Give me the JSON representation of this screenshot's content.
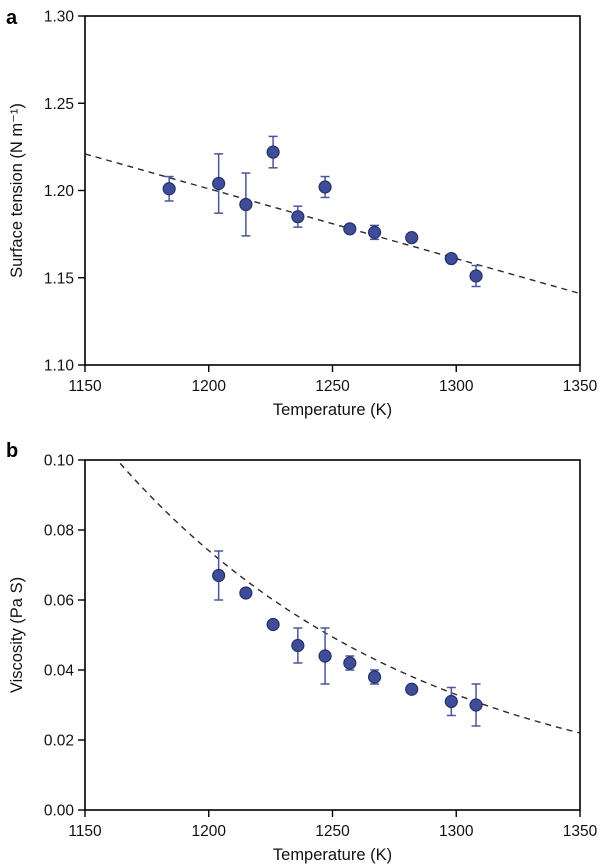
{
  "figure": {
    "background": "#ffffff",
    "marker_fill": "#3d4d99",
    "marker_edge": "#27306a",
    "errorbar_color": "#4a569e",
    "fit_line_color": "#2a2a2a"
  },
  "chart_data": [
    {
      "id": "a",
      "panel_label": "a",
      "type": "scatter",
      "title": "",
      "xlabel": "Temperature (K)",
      "ylabel": "Surface tension (N m⁻¹)",
      "xlim": [
        1150,
        1350
      ],
      "ylim": [
        1.1,
        1.3
      ],
      "grid": false,
      "legend": null,
      "xticks": [
        {
          "value": 1150,
          "label": "1150"
        },
        {
          "value": 1200,
          "label": "1200"
        },
        {
          "value": 1250,
          "label": "1250"
        },
        {
          "value": 1300,
          "label": "1300"
        },
        {
          "value": 1350,
          "label": "1350"
        }
      ],
      "yticks": [
        {
          "value": 1.1,
          "label": "1.10"
        },
        {
          "value": 1.15,
          "label": "1.15"
        },
        {
          "value": 1.2,
          "label": "1.20"
        },
        {
          "value": 1.25,
          "label": "1.25"
        },
        {
          "value": 1.3,
          "label": "1.30"
        }
      ],
      "points": [
        {
          "x": 1184,
          "y": 1.201,
          "err": 0.007
        },
        {
          "x": 1204,
          "y": 1.204,
          "err": 0.017
        },
        {
          "x": 1215,
          "y": 1.192,
          "err": 0.018
        },
        {
          "x": 1226,
          "y": 1.222,
          "err": 0.009
        },
        {
          "x": 1236,
          "y": 1.185,
          "err": 0.006
        },
        {
          "x": 1247,
          "y": 1.202,
          "err": 0.006
        },
        {
          "x": 1257,
          "y": 1.178,
          "err": 0
        },
        {
          "x": 1267,
          "y": 1.176,
          "err": 0.004
        },
        {
          "x": 1282,
          "y": 1.173,
          "err": 0
        },
        {
          "x": 1298,
          "y": 1.161,
          "err": 0
        },
        {
          "x": 1308,
          "y": 1.151,
          "err": 0.006
        }
      ],
      "fit": {
        "type": "linear",
        "points": [
          [
            1150,
            1.221
          ],
          [
            1350,
            1.141
          ]
        ]
      }
    },
    {
      "id": "b",
      "panel_label": "b",
      "type": "scatter",
      "title": "",
      "xlabel": "Temperature (K)",
      "ylabel": "Viscosity (Pa S)",
      "xlim": [
        1150,
        1350
      ],
      "ylim": [
        0.0,
        0.1
      ],
      "grid": false,
      "legend": null,
      "xticks": [
        {
          "value": 1150,
          "label": "1150"
        },
        {
          "value": 1200,
          "label": "1200"
        },
        {
          "value": 1250,
          "label": "1250"
        },
        {
          "value": 1300,
          "label": "1300"
        },
        {
          "value": 1350,
          "label": "1350"
        }
      ],
      "yticks": [
        {
          "value": 0.0,
          "label": "0.00"
        },
        {
          "value": 0.02,
          "label": "0.02"
        },
        {
          "value": 0.04,
          "label": "0.04"
        },
        {
          "value": 0.06,
          "label": "0.06"
        },
        {
          "value": 0.08,
          "label": "0.08"
        },
        {
          "value": 0.1,
          "label": "0.10"
        }
      ],
      "points": [
        {
          "x": 1204,
          "y": 0.067,
          "err": 0.007
        },
        {
          "x": 1215,
          "y": 0.062,
          "err": 0
        },
        {
          "x": 1226,
          "y": 0.053,
          "err": 0
        },
        {
          "x": 1236,
          "y": 0.047,
          "err": 0.005
        },
        {
          "x": 1247,
          "y": 0.044,
          "err": 0.008
        },
        {
          "x": 1257,
          "y": 0.042,
          "err": 0.002
        },
        {
          "x": 1267,
          "y": 0.038,
          "err": 0.002
        },
        {
          "x": 1282,
          "y": 0.0345,
          "err": 0
        },
        {
          "x": 1298,
          "y": 0.031,
          "err": 0.004
        },
        {
          "x": 1308,
          "y": 0.03,
          "err": 0.006
        }
      ],
      "fit": {
        "type": "exp",
        "y0": 0.1,
        "x0": 1163,
        "k": 0.0081,
        "x_start": 1150,
        "x_end": 1350
      }
    }
  ]
}
